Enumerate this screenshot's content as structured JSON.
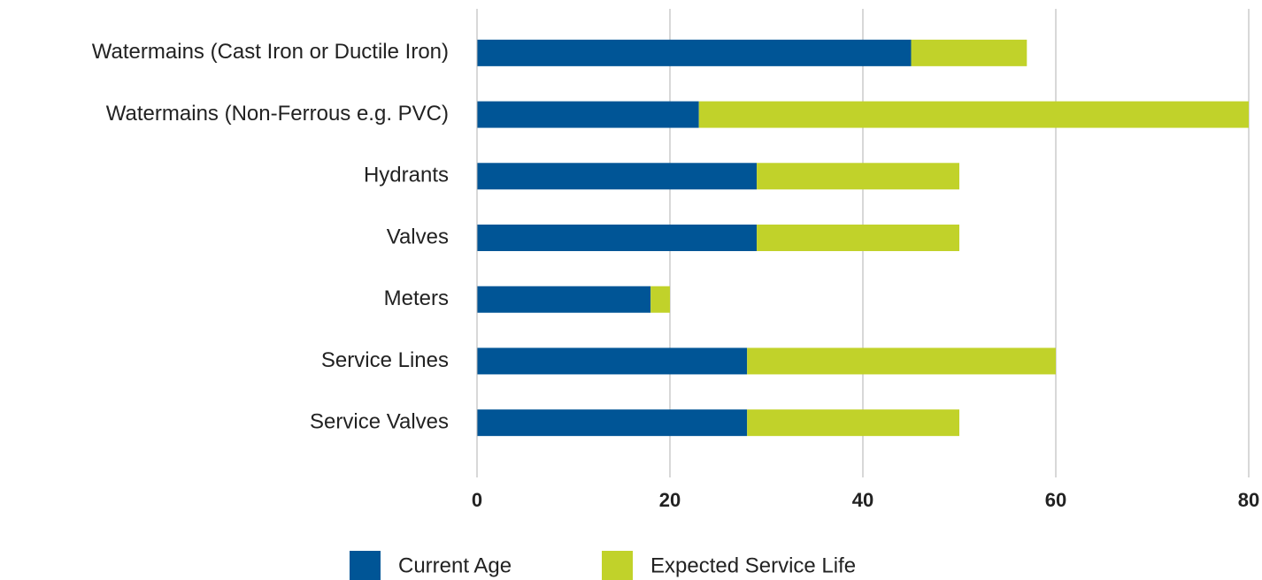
{
  "chart_data": {
    "type": "stacked-barh",
    "categories": [
      "Watermains (Cast Iron or Ductile Iron)",
      "Watermains (Non-Ferrous e.g. PVC)",
      "Hydrants",
      "Valves",
      "Meters",
      "Service Lines",
      "Service Valves"
    ],
    "series": [
      {
        "name": "Current Age",
        "color": "#005596",
        "values": [
          45,
          23,
          29,
          29,
          18,
          28,
          28
        ]
      },
      {
        "name": "Expected Service Life",
        "color": "#c1d22a",
        "values": [
          12,
          57,
          21,
          21,
          2,
          32,
          22
        ]
      }
    ],
    "xlim": [
      0,
      80
    ],
    "xticks": [
      0,
      20,
      40,
      60,
      80
    ],
    "grid": true,
    "legend": "bottom"
  }
}
